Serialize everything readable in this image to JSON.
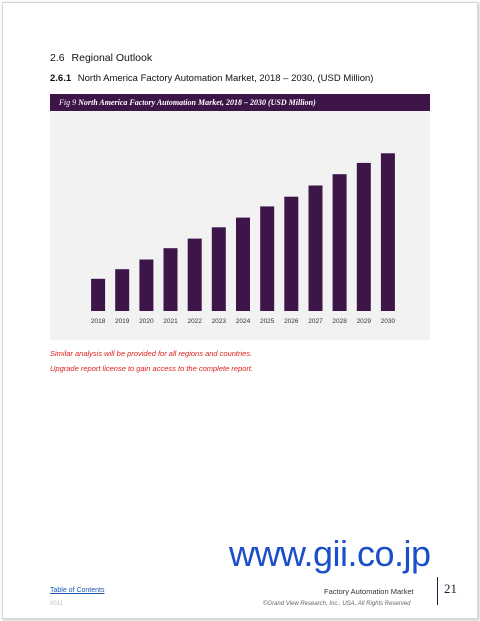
{
  "section": {
    "number": "2.6",
    "title": "Regional Outlook"
  },
  "subsection": {
    "number": "2.6.1",
    "title": "North America Factory Automation Market, 2018 – 2030, (USD Million)"
  },
  "figure": {
    "label": "Fig 9",
    "title": "North America Factory Automation Market, 2018 – 2030 (USD Million)"
  },
  "chart_data": {
    "type": "bar",
    "title": "North America Factory Automation Market, 2018 – 2030 (USD Million)",
    "categories": [
      "2018",
      "2019",
      "2020",
      "2021",
      "2022",
      "2023",
      "2024",
      "2025",
      "2026",
      "2027",
      "2028",
      "2029",
      "2030"
    ],
    "values": [
      20,
      26,
      32,
      39,
      45,
      52,
      58,
      65,
      71,
      78,
      85,
      92,
      98
    ],
    "ylim": [
      0,
      105
    ],
    "xlabel": "",
    "ylabel": "",
    "grid": false,
    "bar_color": "#3d1548"
  },
  "notes": {
    "line1": "Similar analysis will be provided for all regions and countries.",
    "line2": "Upgrade report license to gain access to the complete report."
  },
  "watermark": "www.gii.co.jp",
  "footer": {
    "toc_link": "Table of Contents",
    "doc_id": "0011",
    "report_title": "Factory Automation Market",
    "copyright": "©Grand View Research, Inc., USA, All Rights Reserved",
    "page_number": "21"
  }
}
